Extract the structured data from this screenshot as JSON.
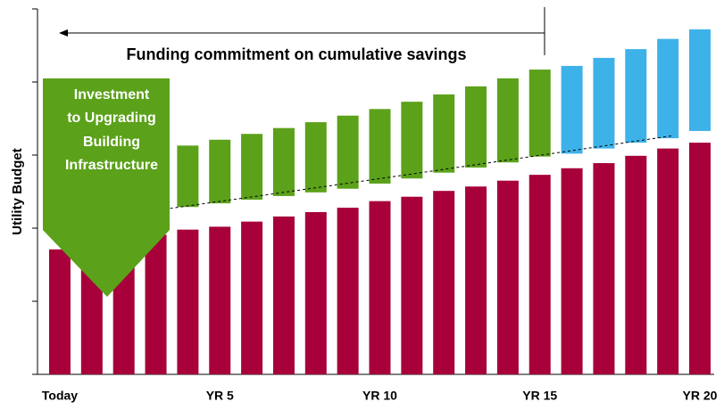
{
  "chart_data": {
    "type": "floating-bar",
    "ylabel": "Utility Budget",
    "categories": [
      "Today",
      null,
      null,
      null,
      null,
      "YR 5",
      null,
      null,
      null,
      null,
      "YR 10",
      null,
      null,
      null,
      null,
      "YR 15",
      null,
      null,
      null,
      null,
      "YR 20"
    ],
    "ylim": [
      0,
      5
    ],
    "yticks": [
      0,
      1,
      2,
      3,
      4,
      5
    ],
    "series": [
      {
        "color": "#a8003b",
        "values": [
          1.71,
          1.78,
          1.85,
          1.91,
          1.98,
          2.02,
          2.09,
          2.16,
          2.22,
          2.28,
          2.37,
          2.43,
          2.51,
          2.57,
          2.65,
          2.73,
          2.82,
          2.89,
          2.99,
          3.09,
          3.17
        ]
      },
      {
        "color": "#5ba11a",
        "ranges": [
          null,
          null,
          null,
          null,
          [
            2.29,
            3.13
          ],
          [
            2.34,
            3.21
          ],
          [
            2.39,
            3.29
          ],
          [
            2.44,
            3.37
          ],
          [
            2.49,
            3.45
          ],
          [
            2.54,
            3.54
          ],
          [
            2.61,
            3.63
          ],
          [
            2.68,
            3.73
          ],
          [
            2.76,
            3.83
          ],
          [
            2.83,
            3.94
          ],
          [
            2.9,
            4.05
          ],
          [
            2.98,
            4.17
          ],
          null,
          null,
          null,
          null,
          null
        ]
      },
      {
        "color": "#3db2e8",
        "ranges": [
          null,
          null,
          null,
          null,
          null,
          null,
          null,
          null,
          null,
          null,
          null,
          null,
          null,
          null,
          null,
          null,
          [
            3.02,
            4.22
          ],
          [
            3.09,
            4.33
          ],
          [
            3.17,
            4.45
          ],
          [
            3.23,
            4.59
          ],
          [
            3.33,
            4.72
          ]
        ]
      }
    ],
    "annotations": {
      "funding": "Funding commitment on cumulative savings",
      "investment": [
        "Investment",
        "to Upgrading",
        "Building",
        "Infrastructure"
      ]
    }
  }
}
